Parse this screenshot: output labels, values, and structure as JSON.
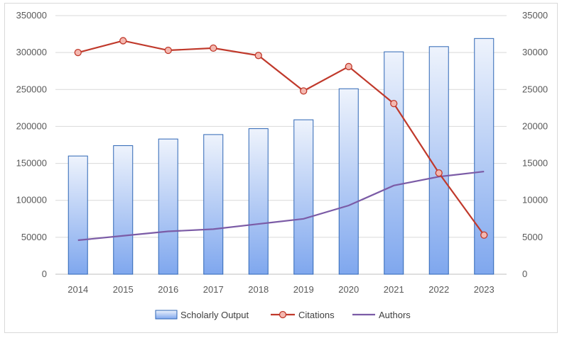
{
  "chart_data": {
    "type": "bar",
    "categories": [
      "2014",
      "2015",
      "2016",
      "2017",
      "2018",
      "2019",
      "2020",
      "2021",
      "2022",
      "2023"
    ],
    "series": [
      {
        "name": "Scholarly Output",
        "type": "bar",
        "axis": "left",
        "values": [
          160000,
          174000,
          183000,
          189000,
          197000,
          209000,
          251000,
          301000,
          308000,
          319000
        ]
      },
      {
        "name": "Citations",
        "type": "line",
        "axis": "left",
        "values": [
          300000,
          316000,
          303000,
          306000,
          296000,
          248000,
          281000,
          231000,
          137000,
          53000
        ]
      },
      {
        "name": "Authors",
        "type": "line",
        "axis": "right",
        "values": [
          4600,
          5200,
          5800,
          6100,
          6800,
          7500,
          9300,
          12000,
          13200,
          13900
        ]
      }
    ],
    "y_left": {
      "min": 0,
      "max": 350000,
      "ticks": [
        "0",
        "50000",
        "100000",
        "150000",
        "200000",
        "250000",
        "300000",
        "350000"
      ]
    },
    "y_right": {
      "min": 0,
      "max": 35000,
      "ticks": [
        "0",
        "5000",
        "10000",
        "15000",
        "20000",
        "25000",
        "30000",
        "35000"
      ]
    },
    "grid": true,
    "legend_position": "bottom",
    "colors": {
      "bar_fill_top": "#e9f0fb",
      "bar_fill_bottom": "#7fa7ee",
      "bar_stroke": "#2e66b5",
      "citations": "#c0392b",
      "citations_marker_fill": "#f4b8b0",
      "authors": "#7b5ba6",
      "grid": "#d9d9d9",
      "axis": "#bfbfbf"
    }
  }
}
